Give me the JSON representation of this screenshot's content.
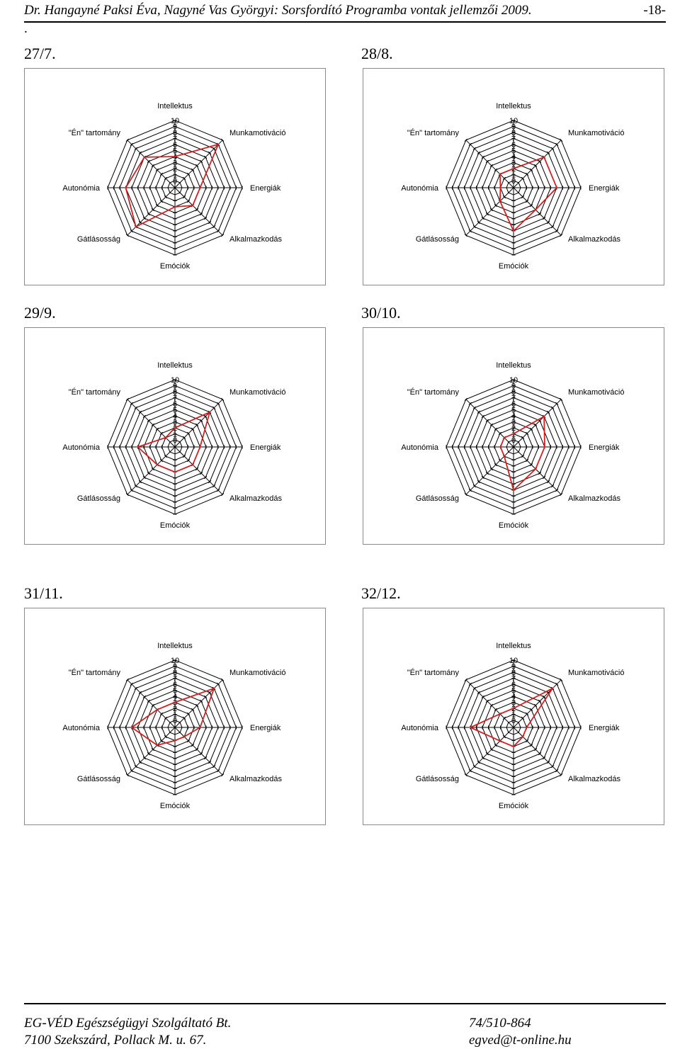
{
  "header": {
    "text": "Dr. Hangayné Paksi Éva, Nagyné Vas Györgyi: Sorsfordító Programba vontak jellemzői 2009.",
    "page": "-18-",
    "dot": "."
  },
  "footer": {
    "company": "EG-VÉD Egészségügyi Szolgáltató Bt.",
    "address": "7100 Szekszárd, Pollack M. u. 67.",
    "phone": "74/510-864",
    "email": "egved@t-online.hu"
  },
  "colors": {
    "series": "#d42020",
    "grid": "#000000"
  },
  "chart_data": [
    {
      "type": "radar",
      "label": "27/7.",
      "axes": [
        "Intellektus",
        "Munkamotiváció",
        "Energiák",
        "Alkalmazkodás",
        "Emóciók",
        "Gátlásosság",
        "Autonómia",
        "\"Én\" tartomány"
      ],
      "ticks": [
        "0",
        "1",
        "2",
        "3",
        "4",
        "5",
        "6",
        "7",
        "8",
        "9",
        "10"
      ],
      "range": [
        0,
        10
      ],
      "values": [
        4,
        9,
        3,
        3,
        2,
        8,
        7,
        6
      ]
    },
    {
      "type": "radar",
      "label": "28/8.",
      "axes": [
        "Intellektus",
        "Munkamotiváció",
        "Energiák",
        "Alkalmazkodás",
        "Emóciók",
        "Gátlásosság",
        "Autonómia",
        "\"Én\" tartomány"
      ],
      "ticks": [
        "0",
        "1",
        "2",
        "3",
        "4",
        "5",
        "6",
        "7",
        "8",
        "9",
        "10"
      ],
      "range": [
        0,
        10
      ],
      "values": [
        2,
        6,
        6,
        4,
        6,
        2,
        1,
        2
      ]
    },
    {
      "type": "radar",
      "label": "29/9.",
      "axes": [
        "Intellektus",
        "Munkamotiváció",
        "Energiák",
        "Alkalmazkodás",
        "Emóciók",
        "Gátlásosság",
        "Autonómia",
        "\"Én\" tartomány"
      ],
      "ticks": [
        "0",
        "1",
        "2",
        "3",
        "4",
        "5",
        "6",
        "7",
        "8",
        "9",
        "10"
      ],
      "range": [
        0,
        10
      ],
      "values": [
        2,
        7,
        3,
        3,
        3,
        3,
        5,
        1
      ]
    },
    {
      "type": "radar",
      "label": "30/10.",
      "axes": [
        "Intellektus",
        "Munkamotiváció",
        "Energiák",
        "Alkalmazkodás",
        "Emóciók",
        "Gátlásosság",
        "Autonómia",
        "\"Én\" tartomány"
      ],
      "ticks": [
        "0",
        "1",
        "2",
        "3",
        "4",
        "5",
        "6",
        "7",
        "8",
        "9",
        "10"
      ],
      "range": [
        0,
        10
      ],
      "values": [
        1,
        6,
        4,
        4,
        6,
        1,
        1,
        1
      ]
    },
    {
      "type": "radar",
      "label": "31/11.",
      "axes": [
        "Intellektus",
        "Munkamotiváció",
        "Energiák",
        "Alkalmazkodás",
        "Emóciók",
        "Gátlásosság",
        "Autonómia",
        "\"Én\" tartomány"
      ],
      "ticks": [
        "0",
        "1",
        "2",
        "3",
        "4",
        "5",
        "6",
        "7",
        "8",
        "9",
        "10"
      ],
      "range": [
        0,
        10
      ],
      "values": [
        3,
        8,
        3,
        1,
        1,
        3,
        6,
        3
      ]
    },
    {
      "type": "radar",
      "label": "32/12.",
      "axes": [
        "Intellektus",
        "Munkamotiváció",
        "Energiák",
        "Alkalmazkodás",
        "Emóciók",
        "Gátlásosság",
        "Autonómia",
        "\"Én\" tartomány"
      ],
      "ticks": [
        "0",
        "1",
        "2",
        "3",
        "4",
        "5",
        "6",
        "7",
        "8",
        "9",
        "10"
      ],
      "range": [
        0,
        10
      ],
      "values": [
        2,
        8,
        1,
        1,
        2,
        2,
        6,
        2
      ]
    }
  ]
}
